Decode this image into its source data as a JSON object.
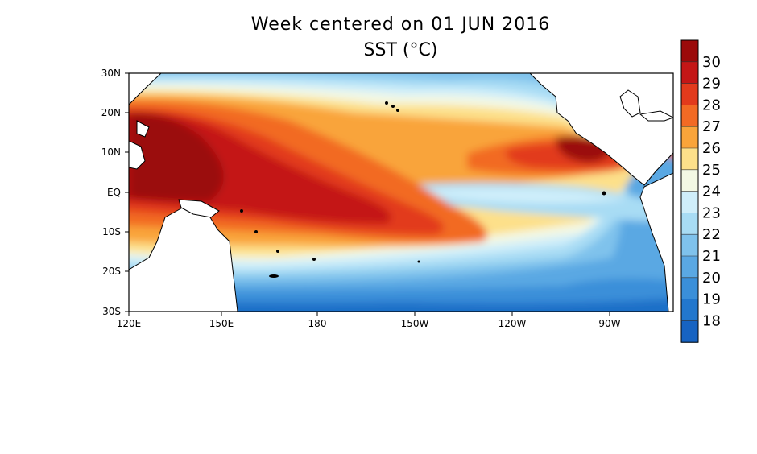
{
  "title": "Week centered on 01 JUN 2016",
  "subtitle": "SST (°C)",
  "map": {
    "lat_labels": [
      "30N",
      "20N",
      "10N",
      "EQ",
      "10S",
      "20S",
      "30S"
    ],
    "lon_labels": [
      "120E",
      "150E",
      "180",
      "150W",
      "120W",
      "90W"
    ]
  },
  "colorbar": {
    "labels": [
      "30",
      "29",
      "28",
      "27",
      "26",
      "25",
      "24",
      "23",
      "22",
      "21",
      "20",
      "19",
      "18"
    ],
    "colors": [
      "#9b0a0a",
      "#c41616",
      "#e23a1c",
      "#f26a24",
      "#f9a43a",
      "#fde08a",
      "#f3f8e4",
      "#cfeefa",
      "#a8dcf4",
      "#7fc2ec",
      "#5aa8e3",
      "#3a8fd9",
      "#2277cd",
      "#1763c2"
    ]
  }
}
